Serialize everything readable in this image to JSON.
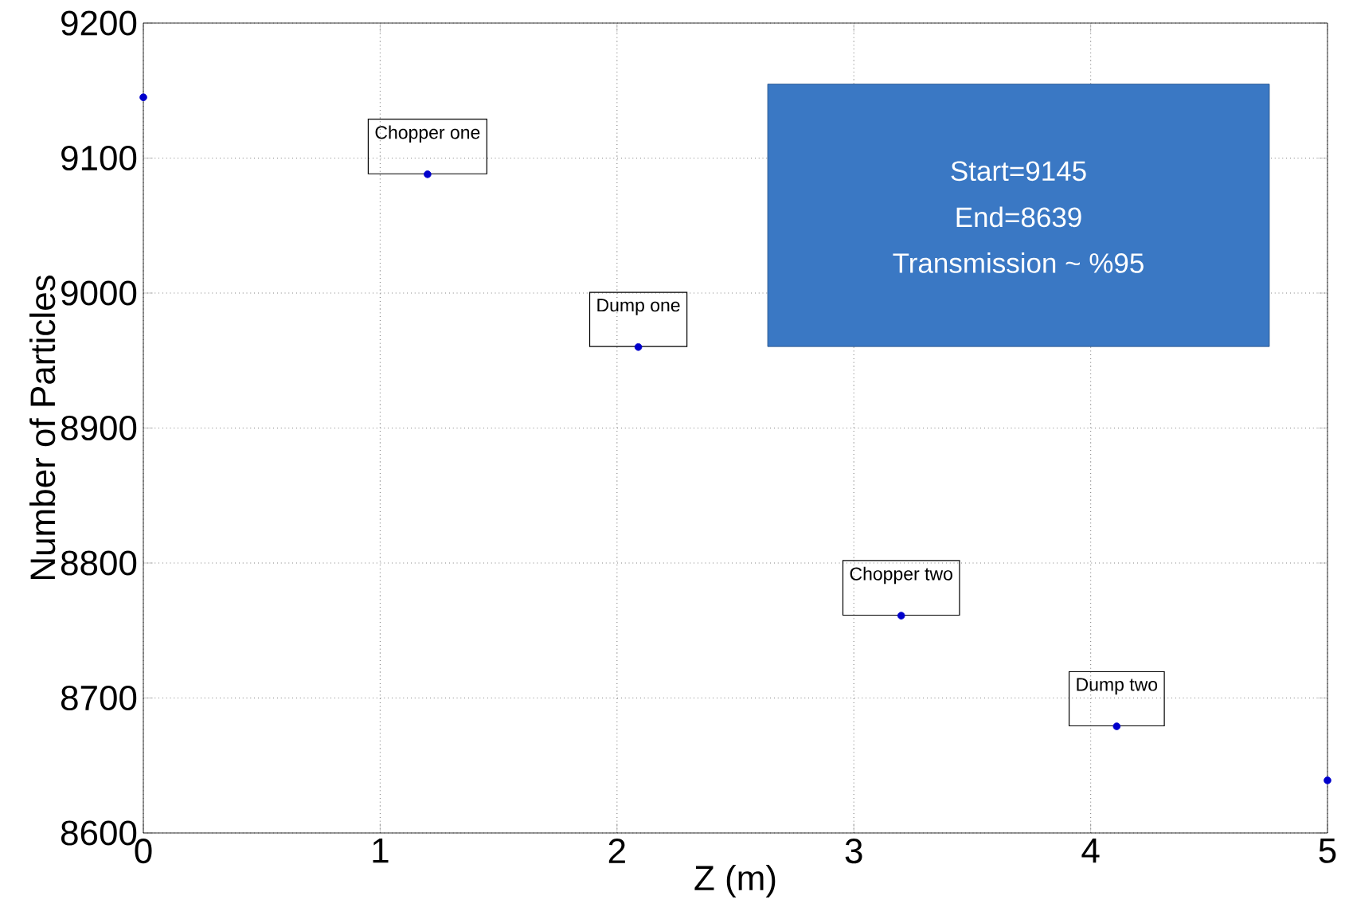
{
  "chart_data": {
    "type": "scatter",
    "xlabel": "Z (m)",
    "ylabel": "Number of Particles",
    "x": [
      0,
      1.2,
      2.09,
      3.2,
      4.11,
      5
    ],
    "values": [
      9145,
      9088,
      8960,
      8761,
      8679,
      8639
    ],
    "color": "#0000cc",
    "marker": "circle",
    "xlim": [
      0,
      5
    ],
    "xticks": [
      0,
      1,
      2,
      3,
      4,
      5
    ],
    "ylim": [
      8600,
      9200
    ],
    "yticks": [
      8600,
      8700,
      8800,
      8900,
      9000,
      9100,
      9200
    ],
    "grid": true,
    "annotations": [
      {
        "text": "Chopper one",
        "x": 1.2,
        "y": 9088
      },
      {
        "text": "Dump one",
        "x": 2.09,
        "y": 8960
      },
      {
        "text": "Chopper two",
        "x": 3.2,
        "y": 8761
      },
      {
        "text": "Dump two",
        "x": 4.11,
        "y": 8679
      },
      "Start=9145",
      "End=8639",
      "Transmission ~ %95"
    ]
  }
}
